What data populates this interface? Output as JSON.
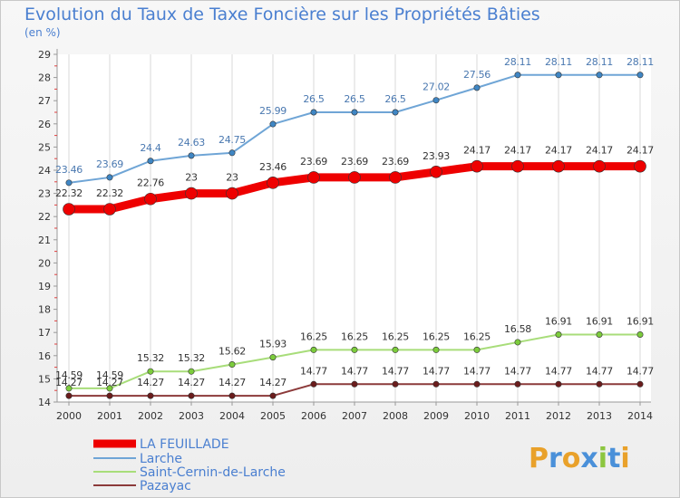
{
  "chart_data": {
    "type": "line",
    "title": "Evolution du Taux de Taxe Foncière sur les Propriétés Bâties",
    "subtitle": "(en %)",
    "xlabel": "",
    "ylabel": "",
    "x": [
      2000,
      2001,
      2002,
      2003,
      2004,
      2005,
      2006,
      2007,
      2008,
      2009,
      2010,
      2011,
      2012,
      2013,
      2014
    ],
    "y_ticks": [
      14,
      15,
      16,
      17,
      18,
      19,
      20,
      21,
      22,
      23,
      24,
      25,
      26,
      27,
      28,
      29
    ],
    "ylim": [
      14,
      29
    ],
    "grid": "vertical",
    "legend_position": "bottom-left",
    "series": [
      {
        "name": "Larche",
        "color": "#6fa5d6",
        "marker_color": "#3f86c4",
        "values": [
          23.46,
          23.69,
          24.4,
          24.63,
          24.75,
          25.99,
          26.5,
          26.5,
          26.5,
          27.02,
          27.56,
          28.11,
          28.11,
          28.11,
          28.11
        ],
        "labels": [
          "23.46",
          "23.69",
          "24.4",
          "24.63",
          "24.75",
          "25.99",
          "26.5",
          "26.5",
          "26.5",
          "27.02",
          "27.56",
          "28.11",
          "28.11",
          "28.11",
          "28.11"
        ]
      },
      {
        "name": "LA FEUILLADE",
        "color": "#ee0000",
        "marker_color": "#ee0000",
        "values": [
          22.32,
          22.32,
          22.76,
          23,
          23,
          23.46,
          23.69,
          23.69,
          23.69,
          23.93,
          24.17,
          24.17,
          24.17,
          24.17,
          24.17
        ],
        "labels": [
          "22.32",
          "22.32",
          "22.76",
          "23",
          "23",
          "23.46",
          "23.69",
          "23.69",
          "23.69",
          "23.93",
          "24.17",
          "24.17",
          "24.17",
          "24.17",
          "24.17"
        ]
      },
      {
        "name": "Saint-Cernin-de-Larche",
        "color": "#a8dd7a",
        "marker_color": "#7ccc3c",
        "values": [
          14.59,
          14.59,
          15.32,
          15.32,
          15.62,
          15.93,
          16.25,
          16.25,
          16.25,
          16.25,
          16.25,
          16.58,
          16.91,
          16.91,
          16.91
        ],
        "labels": [
          "14.59",
          "14.59",
          "15.32",
          "15.32",
          "15.62",
          "15.93",
          "16.25",
          "16.25",
          "16.25",
          "16.25",
          "16.25",
          "16.58",
          "16.91",
          "16.91",
          "16.91"
        ]
      },
      {
        "name": "Pazayac",
        "color": "#8c3a3a",
        "marker_color": "#6b1c1c",
        "values": [
          14.27,
          14.27,
          14.27,
          14.27,
          14.27,
          14.27,
          14.77,
          14.77,
          14.77,
          14.77,
          14.77,
          14.77,
          14.77,
          14.77,
          14.77
        ],
        "labels": [
          "14.27",
          "14.27",
          "14.27",
          "14.27",
          "14.27",
          "14.27",
          "14.77",
          "14.77",
          "14.77",
          "14.77",
          "14.77",
          "14.77",
          "14.77",
          "14.77",
          "14.77"
        ]
      }
    ],
    "legend": [
      "LA FEUILLADE",
      "Larche",
      "Saint-Cernin-de-Larche",
      "Pazayac"
    ]
  },
  "logo": {
    "letters": [
      "P",
      "r",
      "o",
      "x",
      "i",
      "t",
      "i"
    ],
    "colors": [
      "#e9a12a",
      "#4a90d9",
      "#e9a12a",
      "#4a90d9",
      "#8cc63f",
      "#4a90d9",
      "#e9a12a"
    ]
  }
}
